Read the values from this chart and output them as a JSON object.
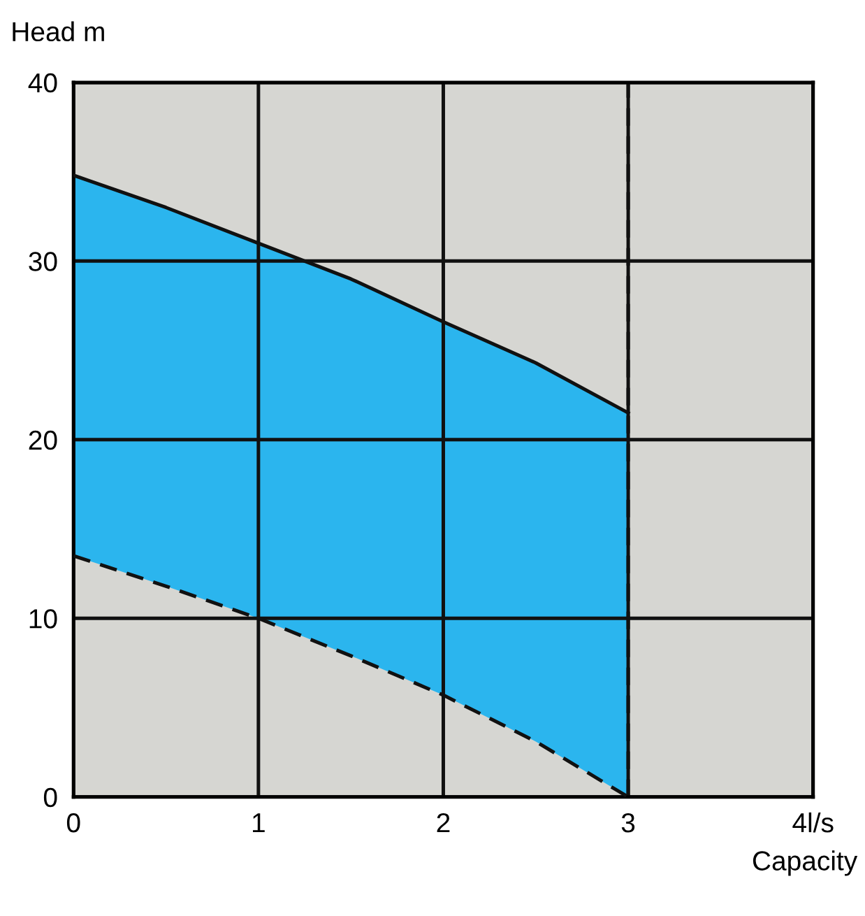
{
  "chart_data": {
    "type": "area",
    "xlabel": "Capacity",
    "ylabel": "Head m",
    "xlim": [
      0,
      4
    ],
    "ylim": [
      0,
      40
    ],
    "xticks": [
      0,
      1,
      2,
      3,
      {
        "value": 4,
        "label": "4l/s"
      }
    ],
    "yticks": [
      0,
      10,
      20,
      30,
      40
    ],
    "grid": true,
    "marker": "none",
    "ref_lines": [
      {
        "axis": "x",
        "value": 3,
        "color": "#111111",
        "line_style": "dashed"
      }
    ],
    "series": [
      {
        "color": "#2bb5ee",
        "x": [
          0,
          0.5,
          1,
          1.5,
          2,
          2.5,
          3
        ],
        "values": [
          34.8,
          33,
          31,
          29,
          26.6,
          24.3,
          21.5
        ]
      },
      {
        "color": "#d6d6d2",
        "line_style": "dashed",
        "x": [
          0,
          0.5,
          1,
          1.5,
          2,
          2.5,
          3
        ],
        "values": [
          13.5,
          11.8,
          10,
          7.9,
          5.7,
          3.1,
          0
        ]
      }
    ]
  }
}
